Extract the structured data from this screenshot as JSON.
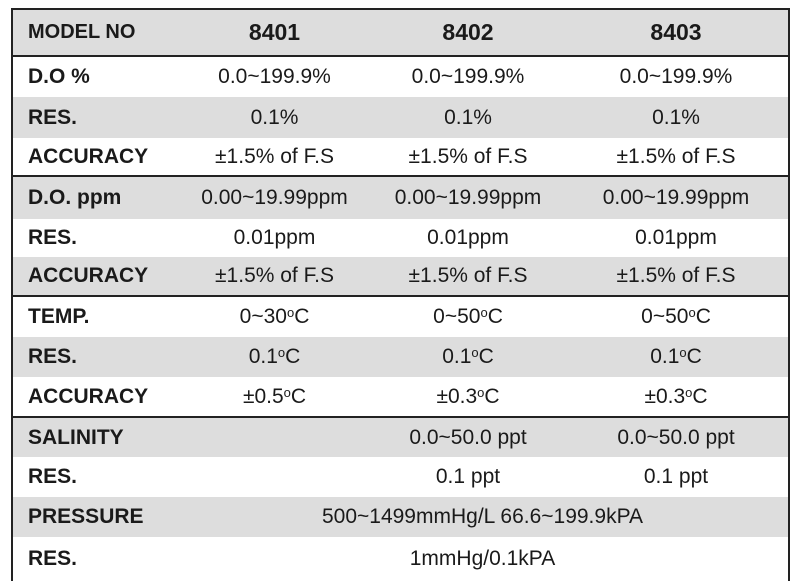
{
  "header": {
    "label": "MODEL NO",
    "models": [
      "8401",
      "8402",
      "8403"
    ]
  },
  "sections": [
    {
      "rows": [
        {
          "label": "D.O %",
          "values": [
            "0.0~199.9%",
            "0.0~199.9%",
            "0.0~199.9%"
          ]
        },
        {
          "label": "RES.",
          "values": [
            "0.1%",
            "0.1%",
            "0.1%"
          ]
        },
        {
          "label": "ACCURACY",
          "values": [
            "±1.5% of F.S",
            "±1.5% of F.S",
            "±1.5% of F.S"
          ]
        }
      ]
    },
    {
      "rows": [
        {
          "label": "D.O. ppm",
          "values": [
            "0.00~19.99ppm",
            "0.00~19.99ppm",
            "0.00~19.99ppm"
          ]
        },
        {
          "label": "RES.",
          "values": [
            "0.01ppm",
            "0.01ppm",
            "0.01ppm"
          ]
        },
        {
          "label": "ACCURACY",
          "values": [
            "±1.5% of F.S",
            "±1.5% of F.S",
            "±1.5% of F.S"
          ]
        }
      ]
    },
    {
      "rows": [
        {
          "label": "TEMP.",
          "values": [
            {
              "pre": "0~30",
              "sup": "o",
              "post": "C"
            },
            {
              "pre": "0~50",
              "sup": "o",
              "post": "C"
            },
            {
              "pre": "0~50",
              "sup": "o",
              "post": "C"
            }
          ]
        },
        {
          "label": "RES.",
          "values": [
            {
              "pre": "0.1",
              "sup": "o",
              "post": "C"
            },
            {
              "pre": "0.1",
              "sup": "o",
              "post": "C"
            },
            {
              "pre": "0.1",
              "sup": "o",
              "post": "C"
            }
          ]
        },
        {
          "label": "ACCURACY",
          "values": [
            {
              "pre": "±0.5",
              "sup": "o",
              "post": "C"
            },
            {
              "pre": "±0.3",
              "sup": "o",
              "post": "C"
            },
            {
              "pre": "±0.3",
              "sup": "o",
              "post": "C"
            }
          ]
        }
      ]
    },
    {
      "rows": [
        {
          "label": "SALINITY",
          "values": [
            "",
            "0.0~50.0 ppt",
            "0.0~50.0 ppt"
          ]
        },
        {
          "label": "RES.",
          "values": [
            "",
            "0.1 ppt",
            "0.1 ppt"
          ]
        },
        {
          "label": "PRESSURE",
          "span": "500~1499mmHg/L 66.6~199.9kPA"
        },
        {
          "label": "RES.",
          "span": "1mmHg/0.1kPA"
        }
      ]
    }
  ]
}
